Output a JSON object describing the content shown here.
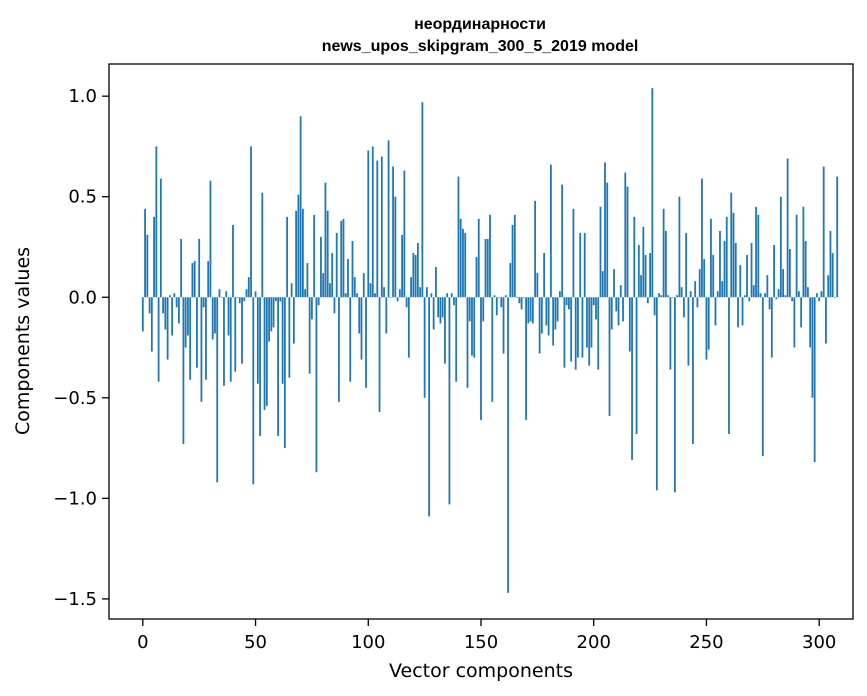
{
  "chart_data": {
    "type": "bar",
    "title_line1": "неординарности",
    "title_line2": "news_upos_skipgram_300_5_2019 model",
    "xlabel": "Vector components",
    "ylabel": "Components values",
    "xlim": [
      -15,
      315
    ],
    "ylim": [
      -1.6,
      1.16
    ],
    "xticks": [
      0,
      50,
      100,
      150,
      200,
      250,
      300
    ],
    "xtick_labels": [
      "0",
      "50",
      "100",
      "150",
      "200",
      "250",
      "300"
    ],
    "yticks": [
      -1.5,
      -1.0,
      -0.5,
      0.0,
      0.5,
      1.0
    ],
    "ytick_labels": [
      "−1.5",
      "−1.0",
      "−0.5",
      "0.0",
      "0.5",
      "1.0"
    ],
    "bar_color": "#1f77b4",
    "values": [
      -0.17,
      0.44,
      0.31,
      -0.08,
      -0.27,
      0.4,
      0.75,
      -0.42,
      0.59,
      -0.08,
      -0.16,
      -0.31,
      0.01,
      -0.19,
      0.02,
      -0.05,
      -0.13,
      0.29,
      -0.73,
      -0.25,
      -0.19,
      -0.41,
      0.17,
      0.18,
      -0.35,
      0.29,
      -0.52,
      -0.05,
      -0.41,
      0.18,
      0.58,
      -0.21,
      -0.18,
      -0.92,
      0.04,
      0.0,
      -0.44,
      0.03,
      -0.19,
      -0.42,
      0.36,
      -0.37,
      0.0,
      -0.03,
      -0.33,
      -0.02,
      0.04,
      0.1,
      0.75,
      -0.93,
      0.03,
      -0.43,
      -0.69,
      0.52,
      -0.56,
      -0.54,
      -0.22,
      -0.17,
      -0.15,
      -0.02,
      -0.69,
      -0.02,
      -0.43,
      -0.75,
      0.4,
      -0.4,
      0.07,
      -0.23,
      0.43,
      0.51,
      0.9,
      0.44,
      0.04,
      0.17,
      -0.38,
      -0.11,
      0.41,
      -0.87,
      -0.04,
      0.3,
      0.12,
      0.57,
      0.43,
      0.07,
      0.22,
      -0.08,
      0.32,
      -0.52,
      0.38,
      0.39,
      0.02,
      0.19,
      -0.42,
      0.28,
      0.1,
      0.02,
      -0.18,
      -0.31,
      0.12,
      -0.45,
      0.73,
      0.07,
      0.75,
      0.02,
      0.68,
      -0.57,
      0.7,
      0.05,
      -0.18,
      0.78,
      0.0,
      0.65,
      0.5,
      -0.02,
      0.04,
      0.31,
      0.63,
      -0.05,
      -0.3,
      0.1,
      0.22,
      0.21,
      0.27,
      0.05,
      0.97,
      -0.5,
      0.05,
      -1.09,
      0.02,
      -0.16,
      0.15,
      -0.1,
      -0.13,
      -0.1,
      -0.33,
      0.02,
      -1.03,
      0.02,
      -0.04,
      -0.42,
      0.6,
      0.39,
      0.34,
      0.32,
      -0.45,
      -0.12,
      -0.29,
      -0.3,
      0.2,
      0.39,
      -0.61,
      -0.12,
      0.29,
      0.29,
      0.41,
      -0.52,
      0.01,
      -0.09,
      0.0,
      -0.05,
      -0.28,
      0.01,
      -1.47,
      0.17,
      0.36,
      0.41,
      0.0,
      -0.03,
      -0.06,
      0.0,
      -0.61,
      -0.13,
      -0.12,
      -0.13,
      0.48,
      0.12,
      -0.28,
      -0.18,
      0.22,
      -0.14,
      -0.19,
      0.66,
      -0.24,
      -0.16,
      -0.12,
      0.03,
      0.56,
      -0.35,
      -0.04,
      -0.06,
      -0.32,
      0.44,
      -0.36,
      -0.3,
      0.32,
      -0.3,
      0.32,
      -0.25,
      -0.34,
      -0.25,
      -0.04,
      -0.11,
      -0.36,
      0.45,
      0.13,
      0.67,
      0.57,
      -0.59,
      -0.16,
      0.14,
      -0.07,
      -0.14,
      0.06,
      -0.12,
      0.62,
      0.55,
      -0.27,
      -0.81,
      0.4,
      -0.68,
      0.26,
      0.11,
      0.35,
      0.21,
      -0.03,
      0.22,
      1.04,
      -0.09,
      -0.96,
      0.02,
      0.01,
      0.44,
      0.33,
      0.01,
      -0.36,
      0.0,
      -0.97,
      0.01,
      0.5,
      0.05,
      -0.1,
      0.32,
      -0.34,
      0.03,
      -0.73,
      0.08,
      -0.05,
      0.14,
      0.59,
      0.19,
      -0.31,
      -0.26,
      0.39,
      0.21,
      -0.14,
      0.03,
      0.33,
      0.08,
      0.28,
      0.4,
      -0.68,
      0.52,
      0.42,
      0.27,
      -0.15,
      0.16,
      -0.14,
      0.01,
      0.21,
      -0.02,
      0.27,
      0.06,
      0.45,
      0.41,
      0.02,
      -0.79,
      0.02,
      0.11,
      -0.06,
      -0.3,
      0.26,
      -0.01,
      0.04,
      0.5,
      0.14,
      0.01,
      0.69,
      0.24,
      -0.02,
      -0.25,
      0.41,
      0.03,
      -0.15,
      0.45,
      0.28,
      0.05,
      -0.25,
      -0.5,
      -0.82,
      0.02,
      -0.02,
      0.03,
      0.65,
      -0.23,
      0.11,
      0.33,
      0.22,
      0.0,
      0.6
    ]
  }
}
